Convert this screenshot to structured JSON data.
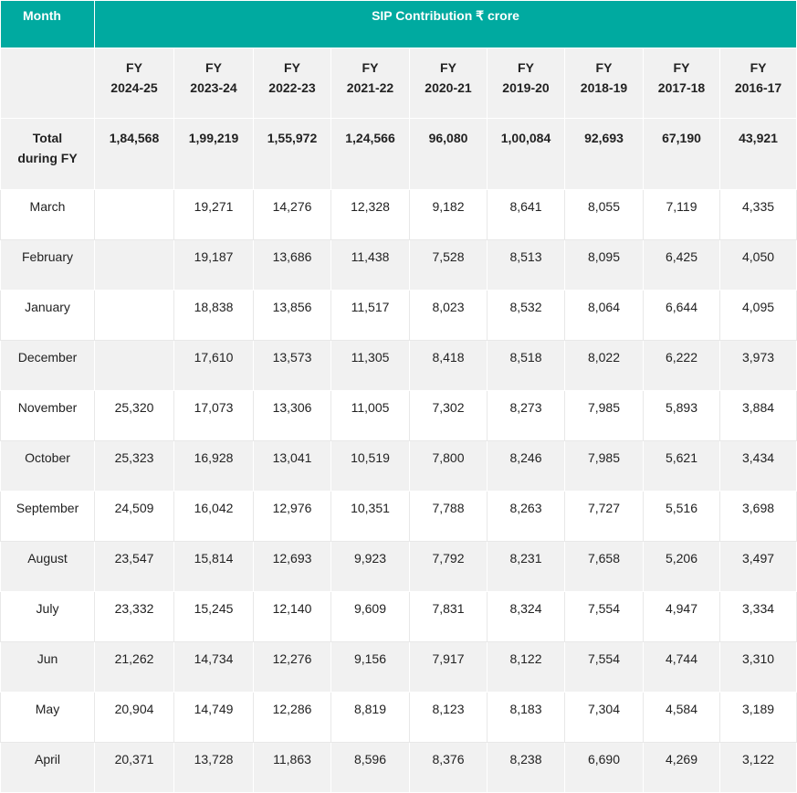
{
  "header": {
    "month_label": "Month",
    "sip_label": "SIP Contribution ₹ crore"
  },
  "years": [
    [
      "FY",
      "2024-25"
    ],
    [
      "FY",
      "2023-24"
    ],
    [
      "FY",
      "2022-23"
    ],
    [
      "FY",
      "2021-22"
    ],
    [
      "FY",
      "2020-21"
    ],
    [
      "FY",
      "2019-20"
    ],
    [
      "FY",
      "2018-19"
    ],
    [
      "FY",
      "2017-18"
    ],
    [
      "FY",
      "2016-17"
    ]
  ],
  "total": {
    "label_line1": "Total",
    "label_line2": "during FY",
    "values": [
      "1,84,568",
      "1,99,219",
      "1,55,972",
      "1,24,566",
      "96,080",
      "1,00,084",
      "92,693",
      "67,190",
      "43,921"
    ]
  },
  "rows": [
    {
      "month": "March",
      "values": [
        "",
        "19,271",
        "14,276",
        "12,328",
        "9,182",
        "8,641",
        "8,055",
        "7,119",
        "4,335"
      ]
    },
    {
      "month": "February",
      "values": [
        "",
        "19,187",
        "13,686",
        "11,438",
        "7,528",
        "8,513",
        "8,095",
        "6,425",
        "4,050"
      ]
    },
    {
      "month": "January",
      "values": [
        "",
        "18,838",
        "13,856",
        "11,517",
        "8,023",
        "8,532",
        "8,064",
        "6,644",
        "4,095"
      ]
    },
    {
      "month": "December",
      "values": [
        "",
        "17,610",
        "13,573",
        "11,305",
        "8,418",
        "8,518",
        "8,022",
        "6,222",
        "3,973"
      ]
    },
    {
      "month": "November",
      "values": [
        "25,320",
        "17,073",
        "13,306",
        "11,005",
        "7,302",
        "8,273",
        "7,985",
        "5,893",
        "3,884"
      ]
    },
    {
      "month": "October",
      "values": [
        "25,323",
        "16,928",
        "13,041",
        "10,519",
        "7,800",
        "8,246",
        "7,985",
        "5,621",
        "3,434"
      ]
    },
    {
      "month": "September",
      "values": [
        "24,509",
        "16,042",
        "12,976",
        "10,351",
        "7,788",
        "8,263",
        "7,727",
        "5,516",
        "3,698"
      ]
    },
    {
      "month": "August",
      "values": [
        "23,547",
        "15,814",
        "12,693",
        "9,923",
        "7,792",
        "8,231",
        "7,658",
        "5,206",
        "3,497"
      ]
    },
    {
      "month": "July",
      "values": [
        "23,332",
        "15,245",
        "12,140",
        "9,609",
        "7,831",
        "8,324",
        "7,554",
        "4,947",
        "3,334"
      ]
    },
    {
      "month": "Jun",
      "values": [
        "21,262",
        "14,734",
        "12,276",
        "9,156",
        "7,917",
        "8,122",
        "7,554",
        "4,744",
        "3,310"
      ]
    },
    {
      "month": "May",
      "values": [
        "20,904",
        "14,749",
        "12,286",
        "8,819",
        "8,123",
        "8,183",
        "7,304",
        "4,584",
        "3,189"
      ]
    },
    {
      "month": "April",
      "values": [
        "20,371",
        "13,728",
        "11,863",
        "8,596",
        "8,376",
        "8,238",
        "6,690",
        "4,269",
        "3,122"
      ]
    }
  ],
  "colors": {
    "header_bg": "#00aaa0",
    "header_text": "#ffffff",
    "stripe": "#f1f1f1"
  }
}
